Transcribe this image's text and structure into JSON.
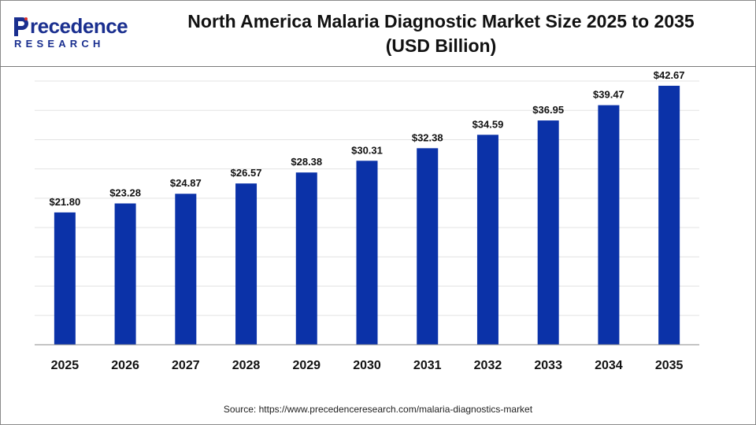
{
  "header": {
    "logo_main": "recedence",
    "logo_sub": "RESEARCH",
    "title_line1": "North America Malaria Diagnostic Market Size 2025 to 2035",
    "title_line2": "(USD Billion)"
  },
  "colors": {
    "bar": "#0b32a8",
    "grid": "#e3e3e3",
    "axis": "#8a8a8a",
    "logo": "#1a2f8f"
  },
  "chart_data": {
    "type": "bar",
    "categories": [
      "2025",
      "2026",
      "2027",
      "2028",
      "2029",
      "2030",
      "2031",
      "2032",
      "2033",
      "2034",
      "2035"
    ],
    "values": [
      21.8,
      23.28,
      24.87,
      26.57,
      28.38,
      30.31,
      32.38,
      34.59,
      36.95,
      39.47,
      42.67
    ],
    "data_labels": [
      "$21.80",
      "$23.28",
      "$24.87",
      "$26.57",
      "$28.38",
      "$30.31",
      "$32.38",
      "$34.59",
      "$36.95",
      "$39.47",
      "$42.67"
    ],
    "title": "North America Malaria Diagnostic Market Size 2025 to 2035 (USD Billion)",
    "xlabel": "",
    "ylabel": "",
    "ylim": [
      0,
      45
    ],
    "grid": true,
    "legend": "none"
  },
  "footer": {
    "source": "Source: https://www.precedenceresearch.com/malaria-diagnostics-market"
  }
}
